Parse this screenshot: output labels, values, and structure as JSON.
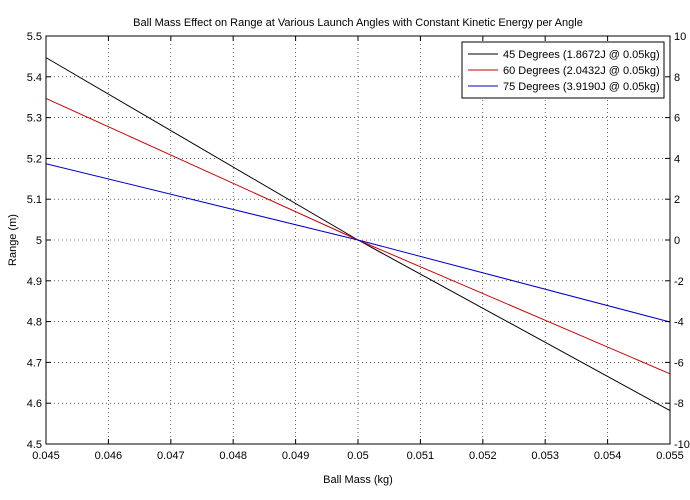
{
  "chart_data": {
    "type": "line",
    "title": "Ball Mass Effect on Range at Various Launch Angles with Constant Kinetic Energy per Angle",
    "xlabel": "Ball Mass (kg)",
    "ylabel": "Range (m)",
    "xlim": [
      0.045,
      0.055
    ],
    "ylim": [
      4.5,
      5.5
    ],
    "y2lim": [
      -10,
      10
    ],
    "x_ticks": [
      "0.045",
      "0.046",
      "0.047",
      "0.048",
      "0.049",
      "0.05",
      "0.051",
      "0.052",
      "0.053",
      "0.054",
      "0.055"
    ],
    "y_ticks": [
      "4.5",
      "4.6",
      "4.7",
      "4.8",
      "4.9",
      "5",
      "5.1",
      "5.2",
      "5.3",
      "5.4",
      "5.5"
    ],
    "y2_ticks": [
      "-10",
      "-8",
      "-6",
      "-4",
      "-2",
      "0",
      "2",
      "4",
      "6",
      "8",
      "10"
    ],
    "grid": true,
    "legend_position": "top-right",
    "series": [
      {
        "name": "45 Degrees (1.8672J @ 0.05kg)",
        "color": "#000000",
        "x": [
          0.045,
          0.05,
          0.055
        ],
        "y": [
          5.447,
          5.0,
          4.582
        ]
      },
      {
        "name": "60 Degrees (2.0432J @ 0.05kg)",
        "color": "#cc0000",
        "x": [
          0.045,
          0.05,
          0.055
        ],
        "y": [
          5.347,
          5.0,
          4.672
        ]
      },
      {
        "name": "75 Degrees (3.9190J @ 0.05kg)",
        "color": "#0000cc",
        "x": [
          0.045,
          0.05,
          0.055
        ],
        "y": [
          5.187,
          5.0,
          4.799
        ]
      }
    ]
  }
}
